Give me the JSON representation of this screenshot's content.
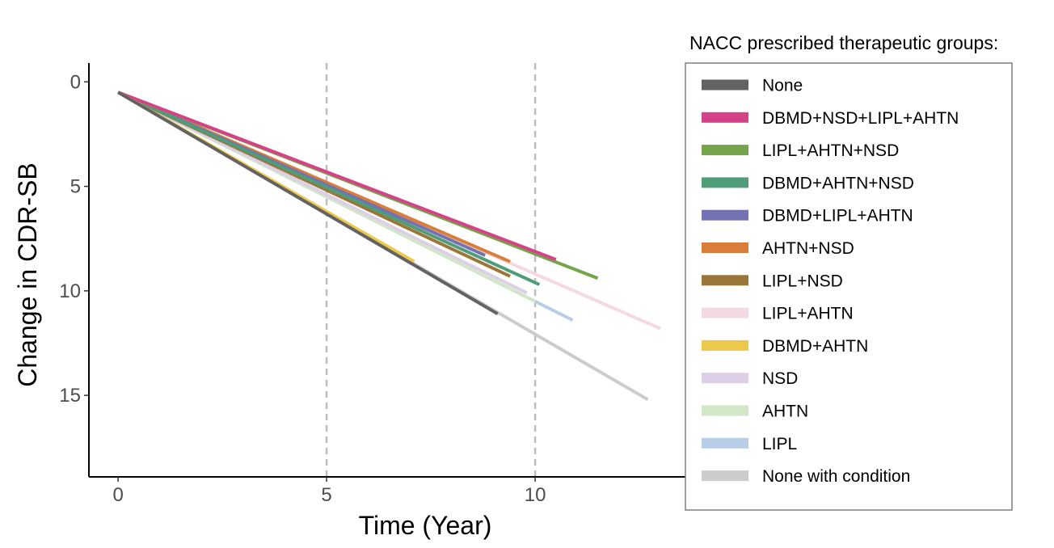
{
  "chart_data": {
    "type": "line",
    "title": "",
    "xlabel": "Time (Year)",
    "ylabel": "Change in CDR-SB",
    "xlim": [
      -0.7,
      13.7
    ],
    "ylim": [
      -0.9,
      18.9
    ],
    "y_reversed": true,
    "x_ticks": [
      0,
      5,
      10
    ],
    "x_tick_labels": [
      "0",
      "5",
      "10"
    ],
    "y_ticks": [
      0,
      5,
      10,
      15
    ],
    "y_tick_labels": [
      "0",
      "5",
      "10",
      "15"
    ],
    "reference_lines_x": [
      5,
      10
    ],
    "grid": false,
    "legend": {
      "title": "NACC prescribed therapeutic groups:",
      "position": "right"
    },
    "series": [
      {
        "name": "None with condition",
        "color": "#cccccc",
        "x": [
          0,
          12.7
        ],
        "y": [
          0.5,
          15.2
        ]
      },
      {
        "name": "LIPL+AHTN",
        "color": "#f2d9e4",
        "x": [
          0,
          13.0
        ],
        "y": [
          0.5,
          11.8
        ]
      },
      {
        "name": "LIPL",
        "color": "#b8cde6",
        "x": [
          0,
          10.9
        ],
        "y": [
          0.5,
          11.4
        ]
      },
      {
        "name": "AHTN",
        "color": "#d2e6c8",
        "x": [
          0,
          10.0
        ],
        "y": [
          0.5,
          10.5
        ]
      },
      {
        "name": "NSD",
        "color": "#dccfe6",
        "x": [
          0,
          9.8
        ],
        "y": [
          0.5,
          10.1
        ]
      },
      {
        "name": "LIPL+NSD",
        "color": "#9a7738",
        "x": [
          0,
          9.4
        ],
        "y": [
          0.5,
          9.3
        ]
      },
      {
        "name": "AHTN+NSD",
        "color": "#d97d38",
        "x": [
          0,
          9.4
        ],
        "y": [
          0.5,
          8.6
        ]
      },
      {
        "name": "DBMD+LIPL+AHTN",
        "color": "#7472b3",
        "x": [
          0,
          8.8
        ],
        "y": [
          0.5,
          8.3
        ]
      },
      {
        "name": "DBMD+AHTN+NSD",
        "color": "#4f9c78",
        "x": [
          0,
          10.1
        ],
        "y": [
          0.5,
          9.7
        ]
      },
      {
        "name": "LIPL+AHTN+NSD",
        "color": "#76a44a",
        "x": [
          0,
          11.5
        ],
        "y": [
          0.5,
          9.4
        ]
      },
      {
        "name": "DBMD+NSD+LIPL+AHTN",
        "color": "#d64287",
        "x": [
          0,
          10.5
        ],
        "y": [
          0.5,
          8.5
        ]
      },
      {
        "name": "DBMD+AHTN",
        "color": "#ecc94b",
        "x": [
          0,
          7.1
        ],
        "y": [
          0.5,
          8.6
        ]
      },
      {
        "name": "None",
        "color": "#636363",
        "x": [
          0,
          9.1
        ],
        "y": [
          0.5,
          11.1
        ]
      }
    ],
    "legend_order": [
      "None",
      "DBMD+NSD+LIPL+AHTN",
      "LIPL+AHTN+NSD",
      "DBMD+AHTN+NSD",
      "DBMD+LIPL+AHTN",
      "AHTN+NSD",
      "LIPL+NSD",
      "LIPL+AHTN",
      "DBMD+AHTN",
      "NSD",
      "AHTN",
      "LIPL",
      "None with condition"
    ]
  }
}
